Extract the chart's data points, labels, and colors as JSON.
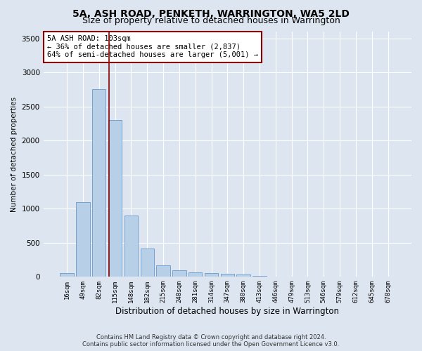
{
  "title": "5A, ASH ROAD, PENKETH, WARRINGTON, WA5 2LD",
  "subtitle": "Size of property relative to detached houses in Warrington",
  "xlabel": "Distribution of detached houses by size in Warrington",
  "ylabel": "Number of detached properties",
  "footer_line1": "Contains HM Land Registry data © Crown copyright and database right 2024.",
  "footer_line2": "Contains public sector information licensed under the Open Government Licence v3.0.",
  "bin_labels": [
    "16sqm",
    "49sqm",
    "82sqm",
    "115sqm",
    "148sqm",
    "182sqm",
    "215sqm",
    "248sqm",
    "281sqm",
    "314sqm",
    "347sqm",
    "380sqm",
    "413sqm",
    "446sqm",
    "479sqm",
    "513sqm",
    "546sqm",
    "579sqm",
    "612sqm",
    "645sqm",
    "678sqm"
  ],
  "bar_values": [
    50,
    1100,
    2750,
    2300,
    900,
    420,
    170,
    100,
    70,
    55,
    40,
    30,
    15,
    8,
    4,
    2,
    1,
    1,
    0,
    0,
    0
  ],
  "bar_color": "#b8cfe8",
  "bar_edge_color": "#6699cc",
  "vline_color": "#8b0000",
  "annotation_text": "5A ASH ROAD: 103sqm\n← 36% of detached houses are smaller (2,837)\n64% of semi-detached houses are larger (5,001) →",
  "annotation_box_color": "#ffffff",
  "annotation_box_edge": "#8b0000",
  "ylim": [
    0,
    3600
  ],
  "yticks": [
    0,
    500,
    1000,
    1500,
    2000,
    2500,
    3000,
    3500
  ],
  "background_color": "#dde5f0",
  "plot_bg_color": "#dde5f0",
  "grid_color": "#ffffff",
  "title_fontsize": 10,
  "subtitle_fontsize": 9
}
